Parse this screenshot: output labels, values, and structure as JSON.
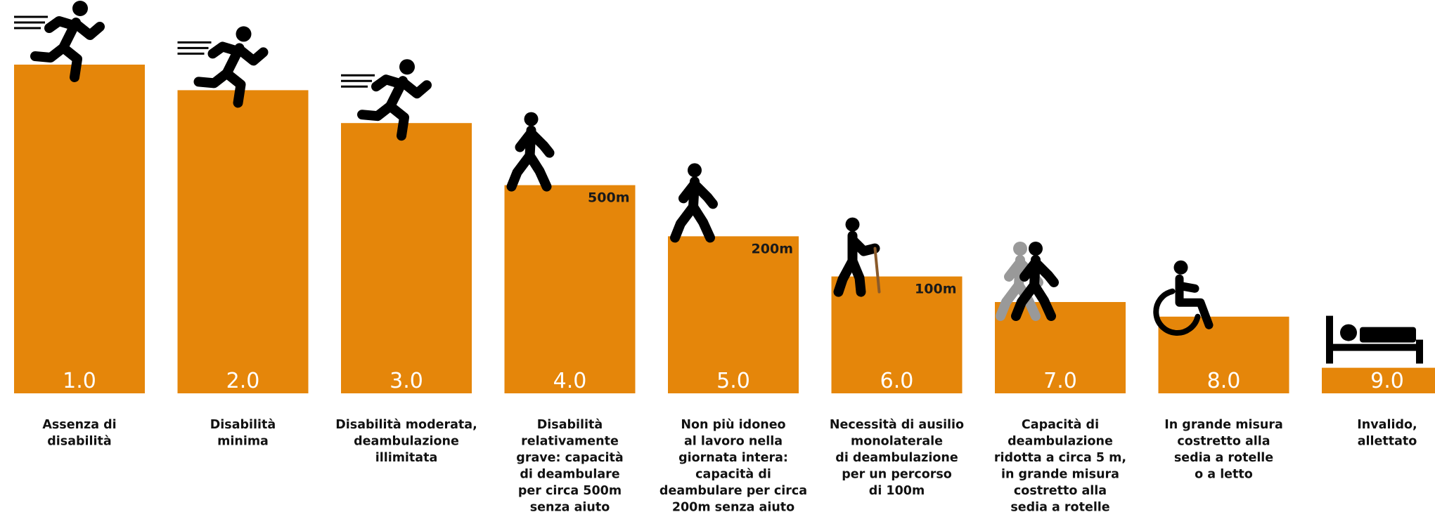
{
  "chart_data": {
    "type": "bar",
    "categories": [
      "1.0",
      "2.0",
      "3.0",
      "4.0",
      "5.0",
      "6.0",
      "7.0",
      "8.0",
      "9.0"
    ],
    "values": [
      9,
      8.3,
      7.4,
      5.7,
      4.3,
      3.2,
      2.5,
      2.1,
      0.7
    ],
    "distance_labels": [
      "",
      "",
      "",
      "500m",
      "200m",
      "100m",
      "",
      "",
      ""
    ],
    "descriptions": [
      [
        "Assenza di",
        "disabilità"
      ],
      [
        "Disabilità",
        "minima"
      ],
      [
        "Disabilità moderata,",
        "deambulazione",
        "illimitata"
      ],
      [
        "Disabilità",
        "relativamente",
        "grave: capacità",
        "di deambulare",
        "per circa 500m",
        "senza aiuto"
      ],
      [
        "Non più idoneo",
        "al lavoro nella",
        "giornata intera:",
        "capacità di",
        "deambulare per circa",
        "200m senza aiuto"
      ],
      [
        "Necessità di ausilio",
        "monolaterale",
        "di deambulazione",
        "per un percorso",
        "di 100m"
      ],
      [
        "Capacità di",
        "deambulazione",
        "ridotta a circa 5 m,",
        "in grande misura",
        "costretto alla",
        "sedia a rotelle"
      ],
      [
        "In grande misura",
        "costretto alla",
        "sedia a rotelle",
        "o a letto"
      ],
      [
        "Invalido,",
        "allettato"
      ]
    ],
    "icons": [
      "running-person-icon",
      "running-person-icon",
      "running-person-icon",
      "walking-person-icon",
      "walking-person-icon",
      "person-with-cane-icon",
      "assisted-walking-icon",
      "wheelchair-icon",
      "bed-icon"
    ],
    "ylim": [
      0,
      10
    ],
    "grid": false,
    "colors": {
      "bar": "#E5860A",
      "icon": "#000000",
      "assistant": "#999999",
      "score_text": "#ffffff"
    }
  }
}
